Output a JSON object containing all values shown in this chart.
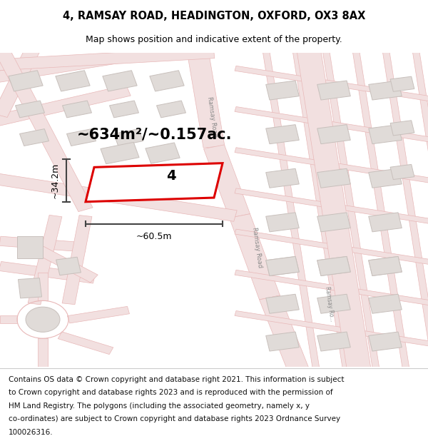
{
  "title": "4, RAMSAY ROAD, HEADINGTON, OXFORD, OX3 8AX",
  "subtitle": "Map shows position and indicative extent of the property.",
  "area_text": "~634m²/~0.157ac.",
  "width_label": "~60.5m",
  "height_label": "~34.2m",
  "property_number": "4",
  "footer_lines": [
    "Contains OS data © Crown copyright and database right 2021. This information is subject",
    "to Crown copyright and database rights 2023 and is reproduced with the permission of",
    "HM Land Registry. The polygons (including the associated geometry, namely x, y",
    "co-ordinates) are subject to Crown copyright and database rights 2023 Ordnance Survey",
    "100026316."
  ],
  "map_bg": "#f7f5f2",
  "road_line_color": "#e8b8b8",
  "road_fill_color": "#f2e0e0",
  "building_fill": "#e0dbd8",
  "building_edge": "#c8c0bc",
  "property_color": "#dd0000",
  "dim_color": "#444444",
  "road_label_color": "#888888",
  "title_fontsize": 10.5,
  "subtitle_fontsize": 9,
  "footer_fontsize": 7.5,
  "area_fontsize": 15,
  "dim_fontsize": 9,
  "number_fontsize": 14
}
